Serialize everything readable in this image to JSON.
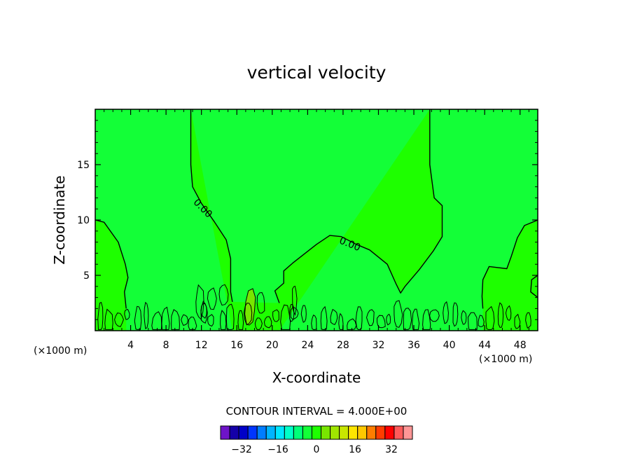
{
  "chart_data": {
    "type": "contour",
    "title": "vertical velocity",
    "xlabel": "X-coordinate",
    "ylabel": "Z-coordinate",
    "x_unit_label": "(×1000 m)",
    "x_unit_label_right": "(×1000 m)",
    "xlim": [
      0,
      50
    ],
    "ylim": [
      0,
      20
    ],
    "x_ticks": [
      4,
      8,
      12,
      16,
      20,
      24,
      28,
      32,
      36,
      40,
      44,
      48
    ],
    "y_ticks": [
      5,
      10,
      15
    ],
    "x_tick_labels": [
      "4",
      "8",
      "12",
      "16",
      "20",
      "24",
      "28",
      "32",
      "36",
      "40",
      "44",
      "48"
    ],
    "y_tick_labels": [
      "5",
      "10",
      "15"
    ],
    "contour_level_labels": [
      "0.00",
      "0.00"
    ],
    "contour_interval_text": "CONTOUR INTERVAL = 4.000E+00",
    "colors": {
      "negative_region": "#13ff37",
      "positive_region": "#1eff00",
      "strong_positive_region": "#78e600",
      "contour_line": "#000000"
    },
    "colorbar": {
      "colors": [
        "#6e13c8",
        "#1400a8",
        "#0000c8",
        "#0035ff",
        "#007dff",
        "#00b4ff",
        "#00e6ff",
        "#00ffc8",
        "#00ff78",
        "#13ff37",
        "#1eff00",
        "#78e600",
        "#a0e600",
        "#c8e600",
        "#ffe600",
        "#ffc800",
        "#ff7d00",
        "#ff3c00",
        "#ff0000",
        "#ff5a5a",
        "#ff9696"
      ],
      "tick_values": [
        -32,
        -16,
        0,
        16,
        32
      ],
      "tick_labels": [
        "−32",
        "−16",
        "0",
        "16",
        "32"
      ],
      "vmin": -42,
      "vmax": 42
    },
    "zero_contours": [
      [
        [
          10.8,
          20
        ],
        [
          10.8,
          15
        ],
        [
          11,
          13
        ],
        [
          12,
          11.5
        ],
        [
          13.5,
          9.8
        ],
        [
          14.8,
          8.2
        ],
        [
          15.3,
          6.5
        ],
        [
          15.3,
          3.5
        ],
        [
          15.5,
          2.6
        ]
      ],
      [
        [
          0,
          10
        ],
        [
          1,
          9.8
        ],
        [
          2.6,
          8
        ],
        [
          3.4,
          6
        ],
        [
          3.7,
          4.8
        ],
        [
          3.3,
          3.5
        ],
        [
          3.5,
          2.0
        ]
      ],
      [
        [
          37.8,
          20
        ],
        [
          37.8,
          15
        ],
        [
          38.3,
          12
        ],
        [
          39.2,
          11.3
        ],
        [
          39.2,
          8.5
        ],
        [
          38.2,
          7.2
        ],
        [
          36.6,
          5.5
        ],
        [
          35,
          4.0
        ],
        [
          34.5,
          3.4
        ],
        [
          34,
          4.2
        ],
        [
          33,
          6
        ],
        [
          31,
          7.3
        ],
        [
          29.5,
          7.8
        ],
        [
          27.8,
          8.5
        ],
        [
          26.5,
          8.6
        ],
        [
          25,
          7.8
        ],
        [
          22.3,
          6.1
        ],
        [
          21.3,
          5.4
        ],
        [
          21.3,
          4.3
        ],
        [
          20.3,
          3.6
        ],
        [
          20.8,
          2.5
        ]
      ],
      [
        [
          50,
          10
        ],
        [
          48.5,
          9.5
        ],
        [
          47.7,
          8.4
        ],
        [
          47,
          6.7
        ],
        [
          46.5,
          5.6
        ],
        [
          44.5,
          5.8
        ],
        [
          43.8,
          4.6
        ],
        [
          43.7,
          3.1
        ],
        [
          43.8,
          2.0
        ]
      ],
      [
        [
          50,
          5
        ],
        [
          49.3,
          4.6
        ],
        [
          49.2,
          3.5
        ],
        [
          50,
          3.0
        ]
      ]
    ]
  }
}
